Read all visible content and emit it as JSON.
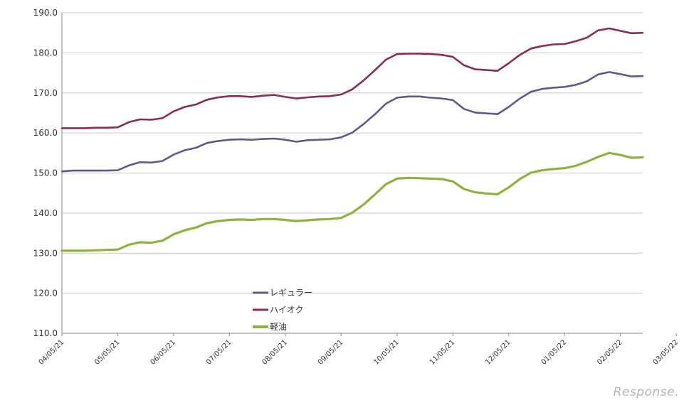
{
  "chart_data": {
    "type": "line",
    "ylim": [
      110,
      190
    ],
    "yticks": [
      "110.0",
      "120.0",
      "130.0",
      "140.0",
      "150.0",
      "160.0",
      "170.0",
      "180.0",
      "190.0"
    ],
    "xtick_labels": [
      "04/05/21",
      "05/05/21",
      "06/05/21",
      "07/05/21",
      "08/05/21",
      "09/05/21",
      "10/05/21",
      "11/05/21",
      "12/05/21",
      "01/05/22",
      "02/05/22",
      "03/05/22"
    ],
    "xtick_positions": [
      0,
      5,
      10,
      15,
      20,
      25,
      30,
      35,
      40,
      45,
      50,
      55
    ],
    "series": [
      {
        "name": "レギュラー",
        "color": "#5b5894",
        "values": [
          150.4,
          150.6,
          150.6,
          150.6,
          150.6,
          150.7,
          151.9,
          152.7,
          152.6,
          153.0,
          154.6,
          155.7,
          156.3,
          157.5,
          158.0,
          158.3,
          158.4,
          158.3,
          158.5,
          158.6,
          158.3,
          157.8,
          158.2,
          158.3,
          158.4,
          158.9,
          160.1,
          162.2,
          164.6,
          167.3,
          168.8,
          169.1,
          169.1,
          168.8,
          168.6,
          168.2,
          166.0,
          165.1,
          164.9,
          164.7,
          166.5,
          168.6,
          170.3,
          171.0,
          171.3,
          171.5,
          172.0,
          172.9,
          174.6,
          175.2,
          174.7,
          174.1,
          174.2
        ]
      },
      {
        "name": "ハイオク",
        "color": "#8c2a56",
        "values": [
          161.2,
          161.2,
          161.2,
          161.3,
          161.3,
          161.4,
          162.7,
          163.4,
          163.3,
          163.7,
          165.4,
          166.5,
          167.1,
          168.3,
          168.9,
          169.2,
          169.2,
          169.0,
          169.3,
          169.5,
          169.0,
          168.6,
          168.9,
          169.1,
          169.2,
          169.6,
          170.9,
          173.1,
          175.6,
          178.3,
          179.7,
          179.8,
          179.8,
          179.7,
          179.5,
          179.0,
          176.9,
          175.9,
          175.7,
          175.5,
          177.4,
          179.5,
          181.1,
          181.7,
          182.1,
          182.2,
          182.9,
          183.8,
          185.6,
          186.1,
          185.5,
          184.9,
          185.0
        ]
      },
      {
        "name": "軽油",
        "color": "#8fb23d",
        "values": [
          130.6,
          130.6,
          130.6,
          130.7,
          130.8,
          130.9,
          132.1,
          132.7,
          132.6,
          133.1,
          134.7,
          135.7,
          136.4,
          137.5,
          138.0,
          138.3,
          138.4,
          138.3,
          138.5,
          138.5,
          138.3,
          138.0,
          138.2,
          138.4,
          138.5,
          138.8,
          140.1,
          142.1,
          144.6,
          147.2,
          148.6,
          148.8,
          148.7,
          148.6,
          148.5,
          147.9,
          146.0,
          145.2,
          144.9,
          144.7,
          146.4,
          148.5,
          150.1,
          150.7,
          151.0,
          151.2,
          151.8,
          152.8,
          154.0,
          155.0,
          154.5,
          153.8,
          153.9
        ]
      }
    ]
  },
  "watermark": "Response."
}
